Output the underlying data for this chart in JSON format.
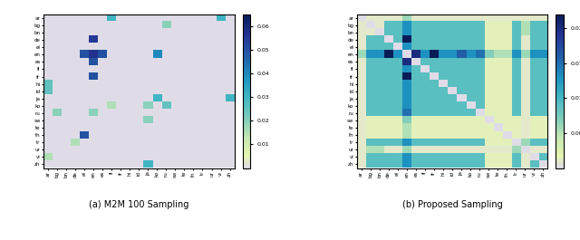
{
  "languages": [
    "ar",
    "bg",
    "bn",
    "de",
    "el",
    "en",
    "es",
    "fi",
    "fr",
    "hi",
    "id",
    "ja",
    "ko",
    "ru",
    "sw",
    "te",
    "th",
    "tr",
    "ur",
    "vi",
    "zh"
  ],
  "title_a": "(a) M2M 100 Sampling",
  "title_b": "(b) Proposed Sampling",
  "colorbar_a_ticks": [
    0.01,
    0.02,
    0.03,
    0.04,
    0.05,
    0.06
  ],
  "colorbar_b_ticks": [
    0.005,
    0.01,
    0.015,
    0.02
  ],
  "cmap_name": "YlGnBu",
  "vmin_a": 0,
  "vmax_a": 0.065,
  "vmin_b": 0,
  "vmax_b": 0.022,
  "lavender_color": "#dcdce8",
  "zero_threshold_a": 0.001,
  "zero_threshold_b": 0.002
}
